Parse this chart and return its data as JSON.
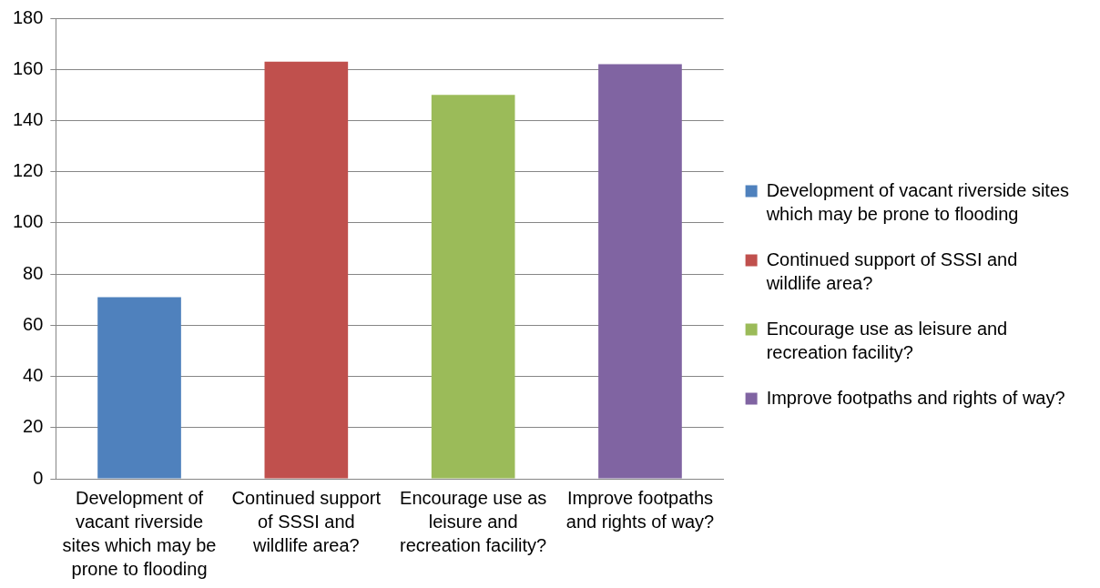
{
  "chart_data": {
    "type": "bar",
    "categories": [
      "Development of vacant riverside sites which may be prone to flooding",
      "Continued support of SSSI and wildlife area?",
      "Encourage use as leisure and recreation facility?",
      "Improve footpaths and rights of way?"
    ],
    "series": [
      {
        "name": "Development of vacant riverside sites which may be prone to flooding",
        "color": "#4f81bd",
        "values": [
          71,
          null,
          null,
          null
        ]
      },
      {
        "name": "Continued support of SSSI and wildlife area?",
        "color": "#c0504d",
        "values": [
          null,
          163,
          null,
          null
        ]
      },
      {
        "name": "Encourage use as leisure and recreation facility?",
        "color": "#9bbb59",
        "values": [
          null,
          null,
          150,
          null
        ]
      },
      {
        "name": "Improve footpaths and rights of way?",
        "color": "#8064a2",
        "values": [
          null,
          null,
          null,
          162
        ]
      }
    ],
    "ylim": [
      0,
      180
    ],
    "yticks": [
      0,
      20,
      40,
      60,
      80,
      100,
      120,
      140,
      160,
      180
    ],
    "grid": "y",
    "legend": "right"
  }
}
